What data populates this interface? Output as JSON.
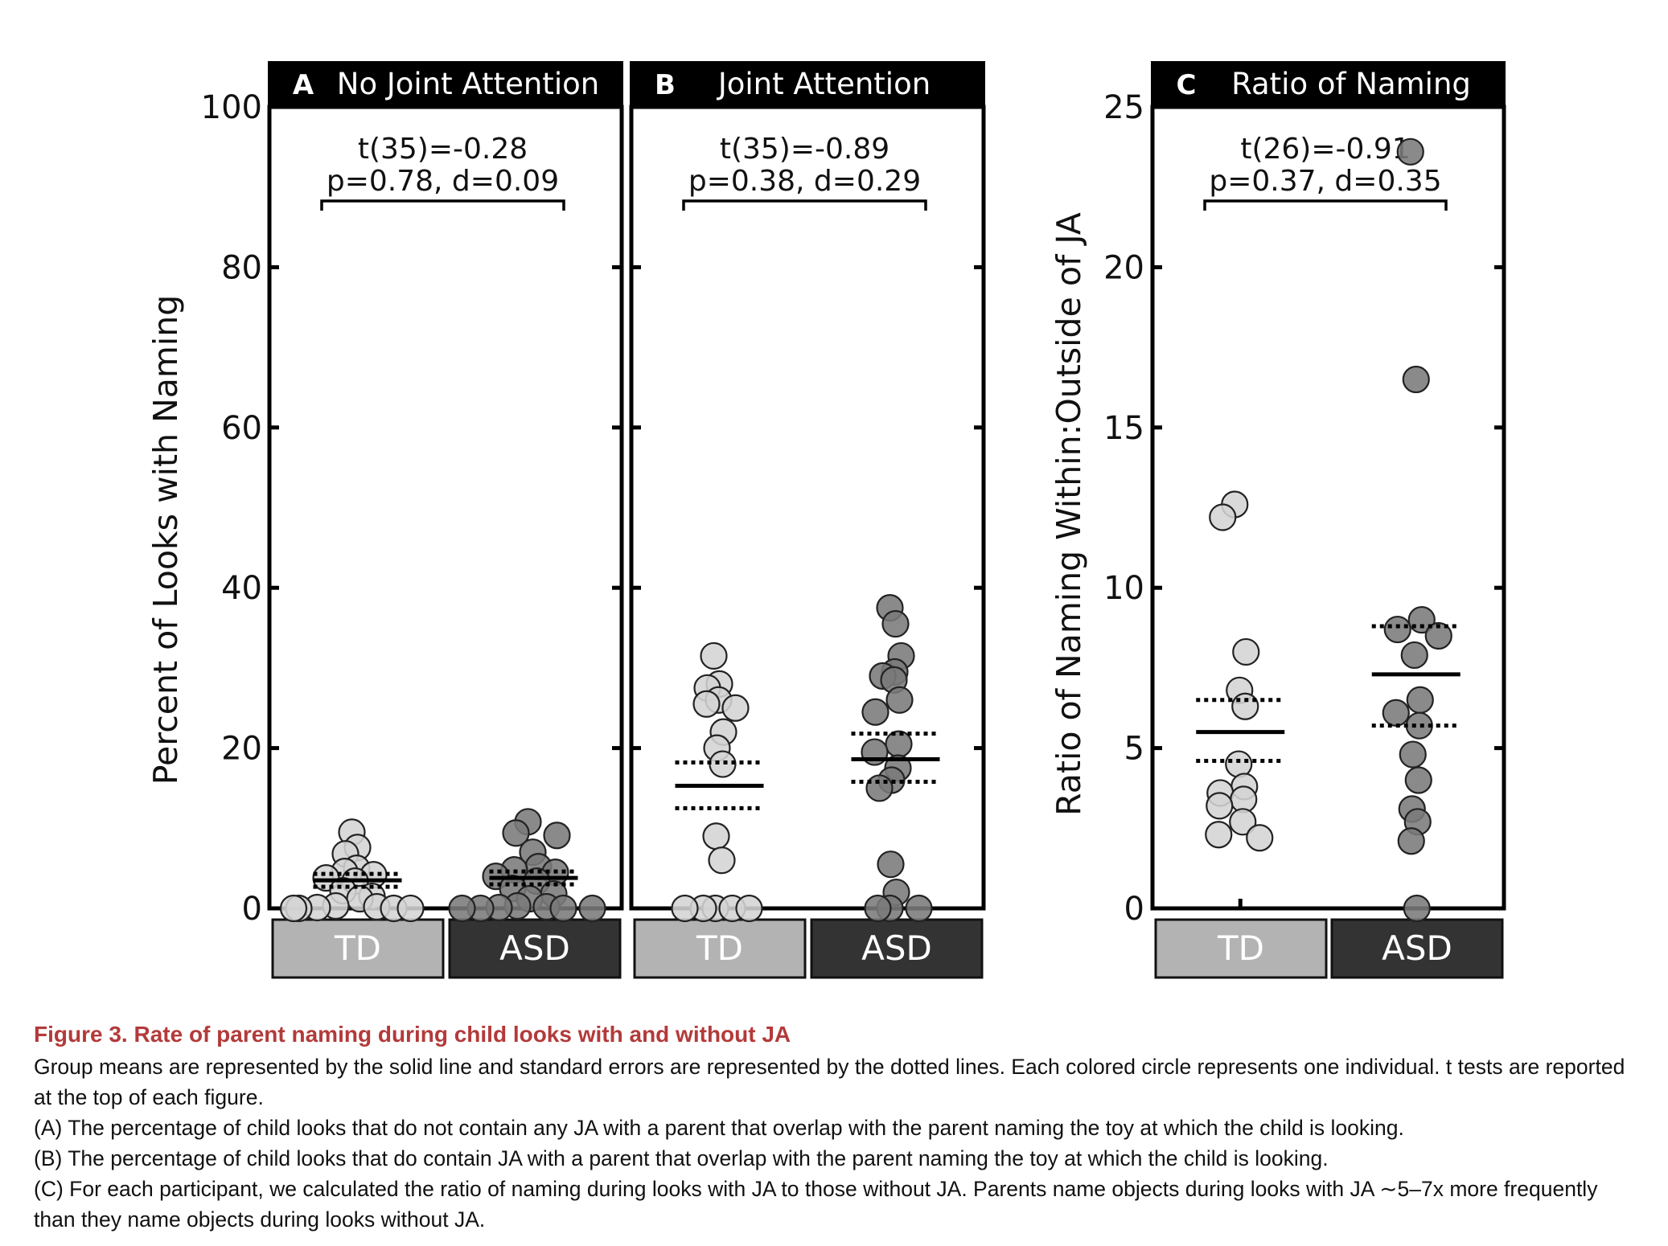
{
  "chart_data": [
    {
      "type": "scatter",
      "panel_letter": "A",
      "title": "No Joint Attention",
      "ylabel": "Percent of Looks with Naming",
      "ylim": [
        0,
        100
      ],
      "yticks": [
        "0",
        "20",
        "40",
        "60",
        "80",
        "100"
      ],
      "categories": [
        "TD",
        "ASD"
      ],
      "stat_line1": "t(35)=-0.28",
      "stat_line2": "p=0.78, d=0.09",
      "series": [
        {
          "name": "TD",
          "mean": 3.5,
          "se_upper": 4.3,
          "se_lower": 2.7,
          "points": [
            9.5,
            7.6,
            6.8,
            5.0,
            4.6,
            4.2,
            3.8,
            3.4,
            2.2,
            1.5,
            1.2,
            0.3,
            0.2,
            0.1,
            0.0,
            0.0,
            0.0,
            0.0
          ]
        },
        {
          "name": "ASD",
          "mean": 3.8,
          "se_upper": 4.6,
          "se_lower": 3.0,
          "points": [
            10.8,
            9.4,
            9.1,
            7.0,
            5.2,
            4.8,
            4.5,
            4.0,
            3.4,
            2.5,
            1.8,
            1.2,
            0.3,
            0.2,
            0.1,
            0.0,
            0.0,
            0.0,
            0.0
          ]
        }
      ]
    },
    {
      "type": "scatter",
      "panel_letter": "B",
      "title": "Joint Attention",
      "ylim": [
        0,
        100
      ],
      "categories": [
        "TD",
        "ASD"
      ],
      "stat_line1": "t(35)=-0.89",
      "stat_line2": "p=0.38, d=0.29",
      "series": [
        {
          "name": "TD",
          "mean": 15.3,
          "se_upper": 18.2,
          "se_lower": 12.5,
          "points": [
            31.5,
            28.0,
            27.5,
            26.0,
            25.5,
            25.0,
            22.0,
            20.0,
            18.0,
            9.0,
            6.0,
            0.0,
            0.0,
            0.0,
            0.0,
            0.0
          ]
        },
        {
          "name": "ASD",
          "mean": 18.6,
          "se_upper": 21.8,
          "se_lower": 15.8,
          "points": [
            37.5,
            35.5,
            31.5,
            29.5,
            29.0,
            28.5,
            26.0,
            24.5,
            20.5,
            19.5,
            17.5,
            16.0,
            15.0,
            5.5,
            2.0,
            0.0,
            0.0,
            0.0
          ]
        }
      ]
    },
    {
      "type": "scatter",
      "panel_letter": "C",
      "title": "Ratio of Naming",
      "ylabel": "Ratio of Naming Within:Outside of JA",
      "ylim": [
        0,
        25
      ],
      "yticks": [
        "0",
        "5",
        "10",
        "15",
        "20",
        "25"
      ],
      "categories": [
        "TD",
        "ASD"
      ],
      "stat_line1": "t(26)=-0.91",
      "stat_line2": "p=0.37, d=0.35",
      "series": [
        {
          "name": "TD",
          "mean": 5.5,
          "se_upper": 6.5,
          "se_lower": 4.6,
          "points": [
            12.6,
            12.2,
            8.0,
            6.8,
            6.3,
            4.5,
            3.8,
            3.6,
            3.4,
            3.2,
            2.7,
            2.3,
            2.2
          ]
        },
        {
          "name": "ASD",
          "mean": 7.3,
          "se_upper": 8.8,
          "se_lower": 5.7,
          "points": [
            23.6,
            16.5,
            9.0,
            8.7,
            8.5,
            7.9,
            6.5,
            6.1,
            5.7,
            4.8,
            4.0,
            3.1,
            2.7,
            2.1,
            0.0
          ]
        }
      ]
    }
  ],
  "colors": {
    "td_fill": "#d4d4d4",
    "td_label_bg": "#b3b3b3",
    "asd_fill": "#7a7a7a",
    "asd_label_bg": "#333333",
    "caption_title": "#b33a3a"
  },
  "caption": {
    "title": "Figure 3.  Rate of parent naming during child looks with and without JA",
    "lines": [
      "Group means are represented by the solid line and standard errors are represented by the dotted lines. Each colored circle represents one individual. t tests are reported at the top of each figure.",
      "(A) The percentage of child looks that do not contain any JA with a parent that overlap with the parent naming the toy at which the child is looking.",
      "(B) The percentage of child looks that do contain JA with a parent that overlap with the parent naming the toy at which the child is looking.",
      "(C) For each participant, we calculated the ratio of naming during looks with JA to those without JA. Parents name objects during looks with JA ∼5–7x more frequently than they name objects during looks without JA."
    ]
  }
}
